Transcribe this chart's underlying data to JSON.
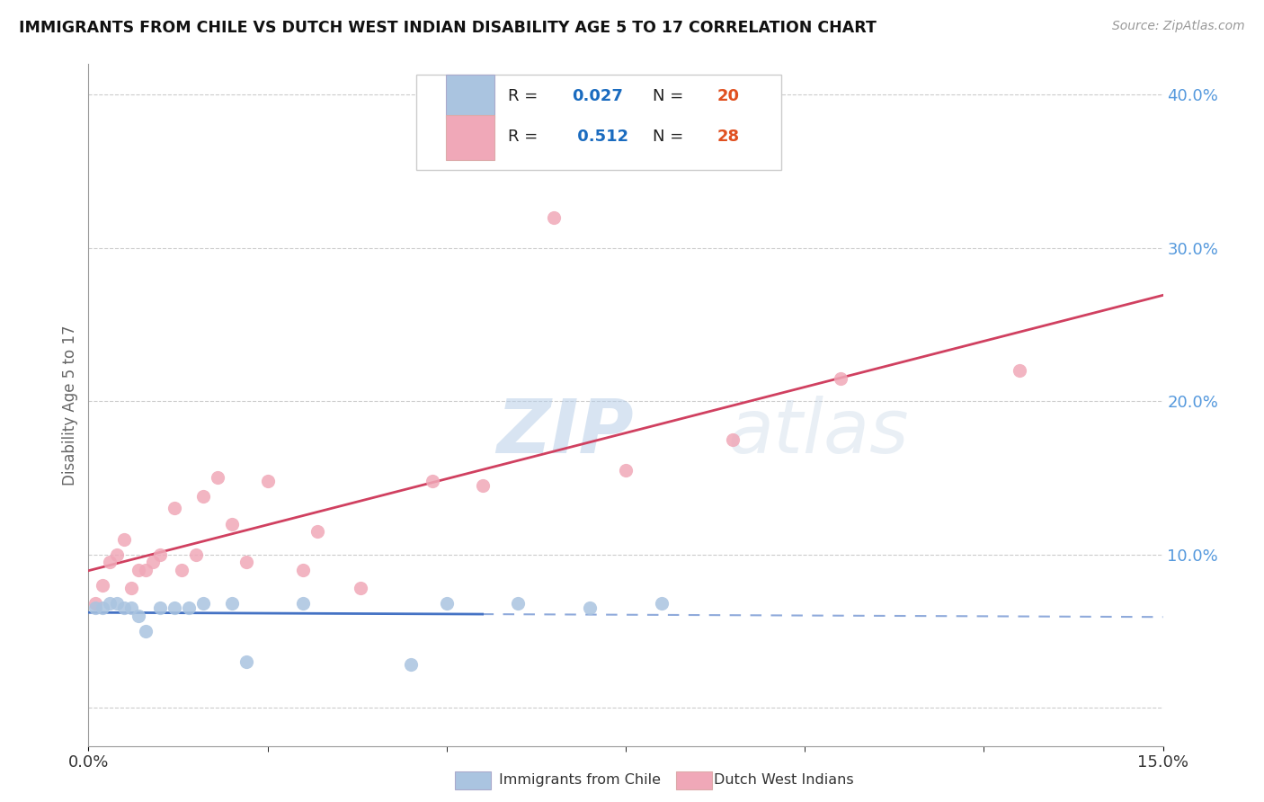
{
  "title": "IMMIGRANTS FROM CHILE VS DUTCH WEST INDIAN DISABILITY AGE 5 TO 17 CORRELATION CHART",
  "source": "Source: ZipAtlas.com",
  "ylabel": "Disability Age 5 to 17",
  "xlim": [
    0.0,
    0.15
  ],
  "ylim": [
    -0.025,
    0.42
  ],
  "ytick_positions_right": [
    0.0,
    0.1,
    0.2,
    0.3,
    0.4
  ],
  "watermark_zip": "ZIP",
  "watermark_atlas": "atlas",
  "chile_R": 0.027,
  "chile_N": 20,
  "dutch_R": 0.512,
  "dutch_N": 28,
  "chile_x": [
    0.001,
    0.002,
    0.003,
    0.004,
    0.005,
    0.006,
    0.007,
    0.008,
    0.01,
    0.012,
    0.014,
    0.016,
    0.02,
    0.022,
    0.03,
    0.045,
    0.05,
    0.06,
    0.07,
    0.08
  ],
  "chile_y": [
    0.065,
    0.065,
    0.068,
    0.068,
    0.065,
    0.065,
    0.06,
    0.05,
    0.065,
    0.065,
    0.065,
    0.068,
    0.068,
    0.03,
    0.068,
    0.028,
    0.068,
    0.068,
    0.065,
    0.068
  ],
  "dutch_x": [
    0.001,
    0.002,
    0.003,
    0.004,
    0.005,
    0.006,
    0.007,
    0.008,
    0.009,
    0.01,
    0.012,
    0.013,
    0.015,
    0.016,
    0.018,
    0.02,
    0.022,
    0.025,
    0.03,
    0.032,
    0.038,
    0.048,
    0.055,
    0.065,
    0.075,
    0.09,
    0.105,
    0.13
  ],
  "dutch_y": [
    0.068,
    0.08,
    0.095,
    0.1,
    0.11,
    0.078,
    0.09,
    0.09,
    0.095,
    0.1,
    0.13,
    0.09,
    0.1,
    0.138,
    0.15,
    0.12,
    0.095,
    0.148,
    0.09,
    0.115,
    0.078,
    0.148,
    0.145,
    0.32,
    0.155,
    0.175,
    0.215,
    0.22
  ],
  "chile_color": "#aac4e0",
  "dutch_color": "#f0a8b8",
  "chile_line_color": "#4472c4",
  "dutch_line_color": "#d04060",
  "background_color": "#ffffff",
  "grid_color": "#cccccc",
  "title_color": "#111111",
  "axis_label_color": "#666666",
  "right_axis_color": "#5599dd"
}
